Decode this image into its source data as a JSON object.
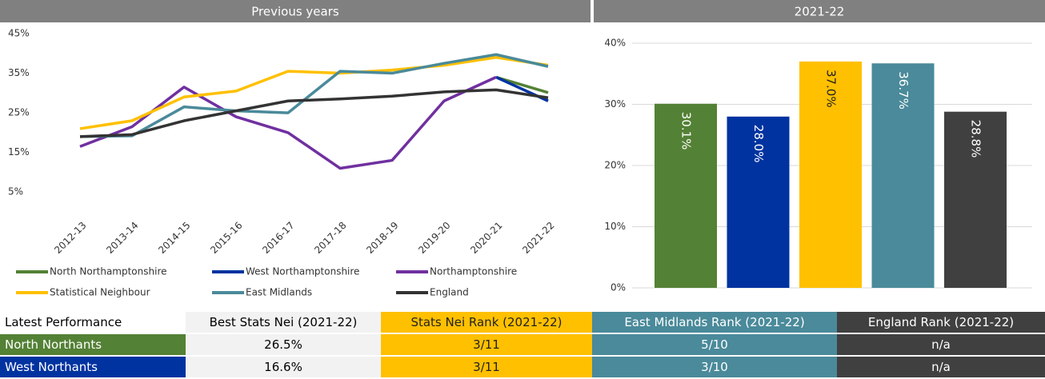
{
  "chart_data": [
    {
      "type": "line",
      "title": "Previous years",
      "categories": [
        "2012-13",
        "2013-14",
        "2014-15",
        "2015-16",
        "2016-17",
        "2017-18",
        "2018-19",
        "2019-20",
        "2020-21",
        "2021-22"
      ],
      "ylim": [
        0,
        45
      ],
      "yticks": [
        {
          "value": 5,
          "label": "5%"
        },
        {
          "value": 15,
          "label": "15%"
        },
        {
          "value": 25,
          "label": "25%"
        },
        {
          "value": 35,
          "label": "35%"
        },
        {
          "value": 45,
          "label": "45%"
        }
      ],
      "grid": false,
      "series": [
        {
          "name": "North Northamptonshire",
          "color": "#538135",
          "values": [
            null,
            null,
            null,
            null,
            null,
            null,
            null,
            null,
            34,
            30.1
          ]
        },
        {
          "name": "West Northamptonshire",
          "color": "#0033a0",
          "values": [
            null,
            null,
            null,
            null,
            null,
            null,
            null,
            null,
            34,
            28.0
          ]
        },
        {
          "name": "Northamptonshire",
          "color": "#7030a0",
          "values": [
            16.5,
            21.5,
            31.5,
            24,
            20,
            11,
            13,
            28,
            34,
            null
          ]
        },
        {
          "name": "Statistical Neighbour",
          "color": "#ffc000",
          "values": [
            21,
            23,
            29,
            30.5,
            35.5,
            35,
            35.8,
            37,
            39,
            37.0
          ]
        },
        {
          "name": "East Midlands",
          "color": "#4a8a9a",
          "values": [
            19,
            19.2,
            26.5,
            25.5,
            25,
            35.5,
            35,
            37.5,
            39.7,
            36.7
          ]
        },
        {
          "name": "England",
          "color": "#333333",
          "values": [
            19,
            19.5,
            23,
            25.5,
            28,
            28.5,
            29.2,
            30.3,
            30.8,
            28.8
          ]
        }
      ]
    },
    {
      "type": "bar",
      "title": "2021-22",
      "values": [
        30.1,
        28.0,
        37.0,
        36.7,
        28.8
      ],
      "value_labels": [
        "30.1%",
        "28.0%",
        "37.0%",
        "36.7%",
        "28.8%"
      ],
      "colors": [
        "#538135",
        "#0033a0",
        "#ffc000",
        "#4a8a9a",
        "#404040"
      ],
      "ylim": [
        0,
        40
      ],
      "yticks": [
        {
          "value": 0,
          "label": "0%"
        },
        {
          "value": 10,
          "label": "10%"
        },
        {
          "value": 20,
          "label": "20%"
        },
        {
          "value": 30,
          "label": "30%"
        },
        {
          "value": 40,
          "label": "40%"
        }
      ],
      "grid": true
    }
  ],
  "table": {
    "header": [
      "Latest Performance",
      "Best Stats Nei (2021-22)",
      "Stats Nei Rank (2021-22)",
      "East Midlands Rank (2021-22)",
      "England Rank (2021-22)"
    ],
    "rows": [
      [
        "North Northants",
        "26.5%",
        "3/11",
        "5/10",
        "n/a"
      ],
      [
        "West Northants",
        "16.6%",
        "3/11",
        "3/10",
        "n/a"
      ]
    ]
  }
}
